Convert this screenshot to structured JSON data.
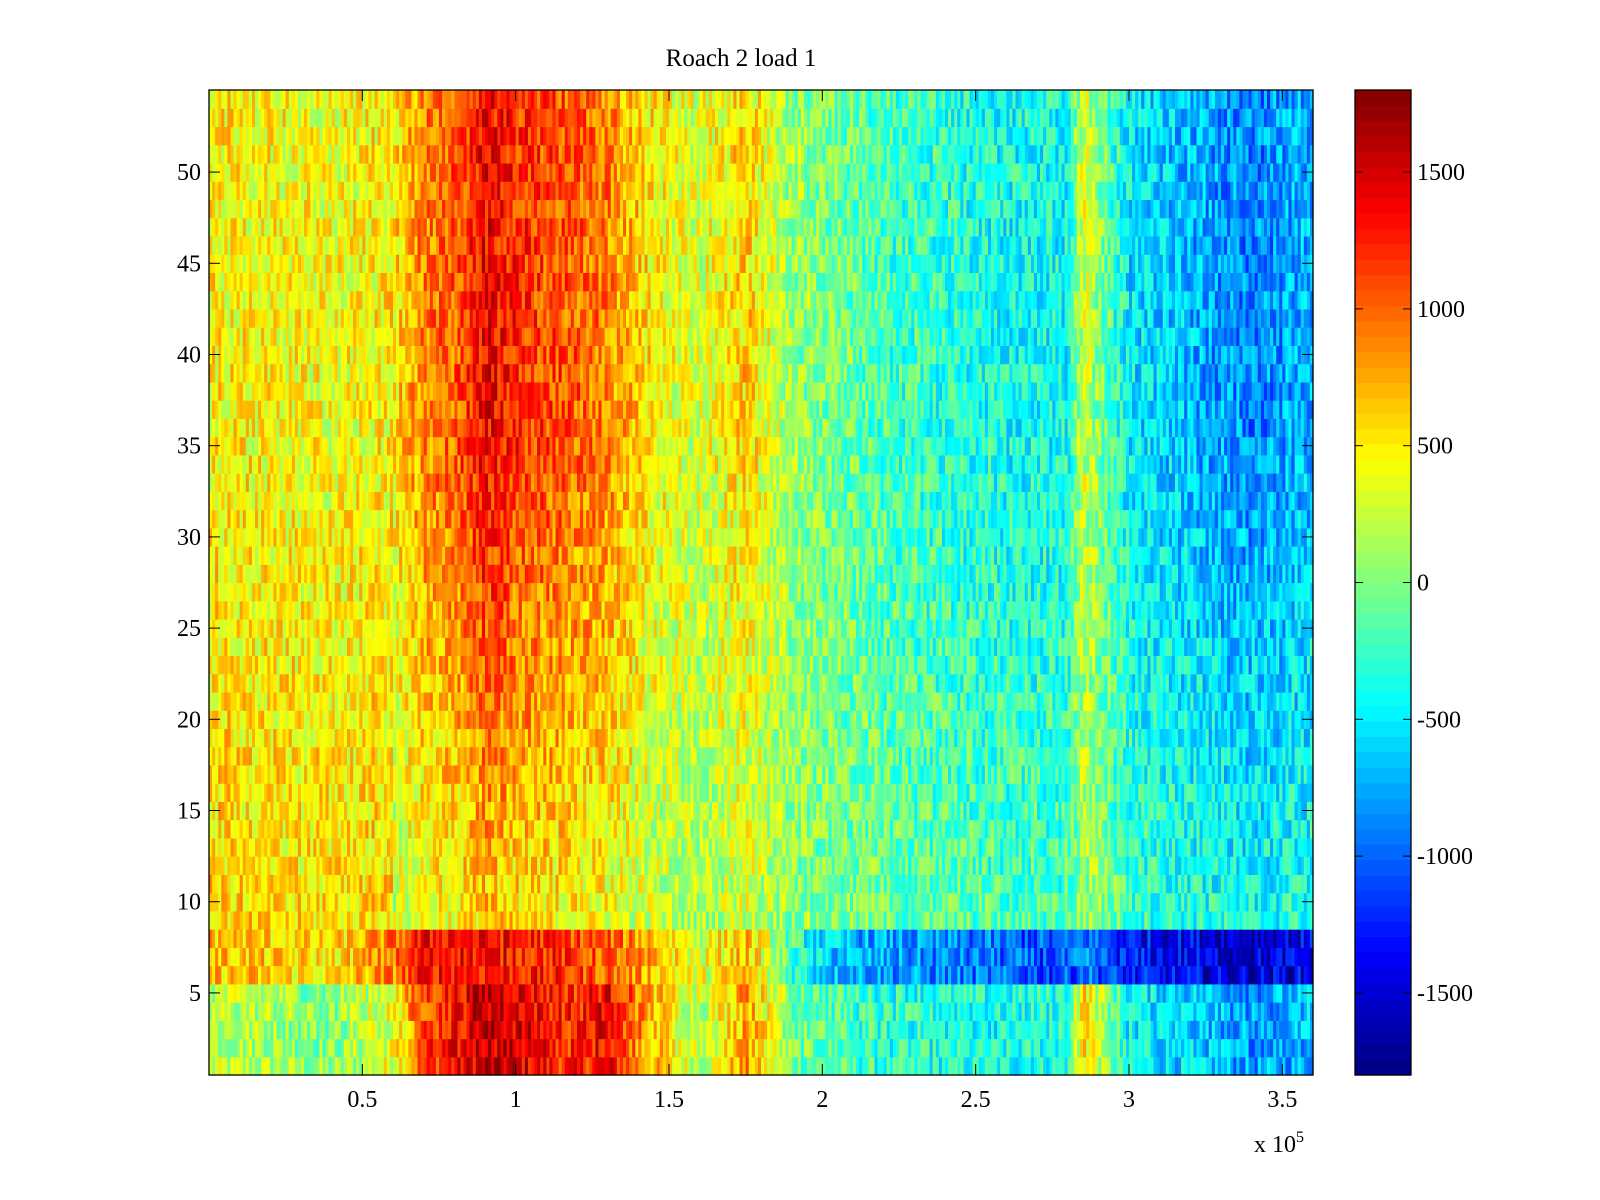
{
  "chart_data": {
    "type": "heatmap",
    "title": "Roach 2 load 1",
    "xlabel": "",
    "ylabel": "",
    "x_exponent_label": "x 10",
    "x_exponent_power": "5",
    "xlim": [
      0,
      360000
    ],
    "ylim": [
      0.5,
      54.5
    ],
    "rows": 54,
    "x_ticks": [
      {
        "value": 50000,
        "label": "0.5"
      },
      {
        "value": 100000,
        "label": "1"
      },
      {
        "value": 150000,
        "label": "1.5"
      },
      {
        "value": 200000,
        "label": "2"
      },
      {
        "value": 250000,
        "label": "2.5"
      },
      {
        "value": 300000,
        "label": "3"
      },
      {
        "value": 350000,
        "label": "3.5"
      }
    ],
    "y_ticks": [
      {
        "value": 5,
        "label": "5"
      },
      {
        "value": 10,
        "label": "10"
      },
      {
        "value": 15,
        "label": "15"
      },
      {
        "value": 20,
        "label": "20"
      },
      {
        "value": 25,
        "label": "25"
      },
      {
        "value": 30,
        "label": "30"
      },
      {
        "value": 35,
        "label": "35"
      },
      {
        "value": 40,
        "label": "40"
      },
      {
        "value": 45,
        "label": "45"
      },
      {
        "value": 50,
        "label": "50"
      }
    ],
    "colorbar": {
      "colormap": "jet",
      "clim": [
        -1800,
        1800
      ],
      "ticks": [
        {
          "value": 1500,
          "label": "1500"
        },
        {
          "value": 1000,
          "label": "1000"
        },
        {
          "value": 500,
          "label": "500"
        },
        {
          "value": 0,
          "label": "0"
        },
        {
          "value": -500,
          "label": "-500"
        },
        {
          "value": -1000,
          "label": "-1000"
        },
        {
          "value": -1500,
          "label": "-1500"
        }
      ]
    },
    "approx_profile": {
      "x_columns": [
        0,
        20000,
        40000,
        60000,
        70000,
        80000,
        90000,
        100000,
        110000,
        120000,
        130000,
        140000,
        150000,
        160000,
        175000,
        190000,
        200000,
        220000,
        240000,
        260000,
        280000,
        285000,
        300000,
        320000,
        340000,
        360000
      ],
      "upper_rows_values": [
        500,
        450,
        400,
        500,
        900,
        1000,
        1400,
        1200,
        1100,
        1000,
        900,
        600,
        400,
        300,
        600,
        100,
        0,
        -200,
        -300,
        -400,
        -400,
        300,
        -500,
        -700,
        -900,
        -700
      ],
      "lower_rows_values": [
        200,
        150,
        0,
        400,
        1100,
        1300,
        1600,
        1500,
        1300,
        1200,
        1400,
        900,
        500,
        200,
        800,
        0,
        -150,
        -300,
        -350,
        -400,
        -300,
        600,
        -450,
        -600,
        -800,
        -700
      ],
      "band_rows_6_8_values": [
        700,
        600,
        500,
        900,
        1300,
        1400,
        1300,
        1300,
        1200,
        1100,
        1000,
        800,
        600,
        300,
        700,
        -200,
        -600,
        -800,
        -900,
        -1000,
        -1100,
        -900,
        -1300,
        -1400,
        -1500,
        -1400
      ],
      "row_gradient_note_values": [
        0,
        0
      ]
    }
  }
}
